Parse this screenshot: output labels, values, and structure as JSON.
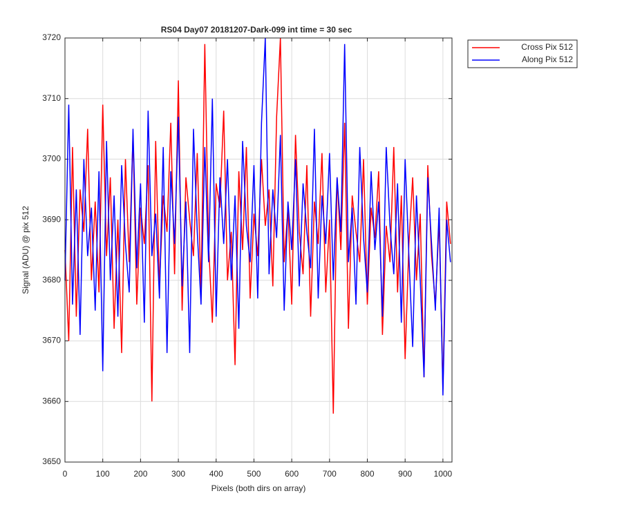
{
  "chart_data": {
    "type": "line",
    "title": "RS04 Day07 20181207-Dark-099 int time = 30 sec",
    "xlabel": "Pixels (both dirs on array)",
    "ylabel": "Signal (ADU) @ pix 512",
    "x": [
      0,
      10,
      20,
      30,
      40,
      50,
      60,
      70,
      80,
      90,
      100,
      110,
      120,
      130,
      140,
      150,
      160,
      170,
      180,
      190,
      200,
      210,
      220,
      230,
      240,
      250,
      260,
      270,
      280,
      290,
      300,
      310,
      320,
      330,
      340,
      350,
      360,
      370,
      380,
      390,
      400,
      410,
      420,
      430,
      440,
      450,
      460,
      470,
      480,
      490,
      500,
      510,
      520,
      530,
      540,
      550,
      560,
      570,
      580,
      590,
      600,
      610,
      620,
      630,
      640,
      650,
      660,
      670,
      680,
      690,
      700,
      710,
      720,
      730,
      740,
      750,
      760,
      770,
      780,
      790,
      800,
      810,
      820,
      830,
      840,
      850,
      860,
      870,
      880,
      890,
      900,
      910,
      920,
      930,
      940,
      950,
      960,
      970,
      980,
      990,
      1000,
      1010,
      1020
    ],
    "series": [
      {
        "name": "Cross Pix 512",
        "color": "#ff0000",
        "values": [
          3685,
          3670,
          3702,
          3674,
          3695,
          3688,
          3705,
          3680,
          3693,
          3678,
          3709,
          3684,
          3697,
          3672,
          3690,
          3668,
          3700,
          3683,
          3704,
          3676,
          3692,
          3686,
          3699,
          3660,
          3703,
          3679,
          3694,
          3688,
          3706,
          3681,
          3713,
          3675,
          3697,
          3690,
          3684,
          3701,
          3678,
          3719,
          3686,
          3673,
          3696,
          3692,
          3708,
          3680,
          3688,
          3666,
          3698,
          3685,
          3702,
          3677,
          3691,
          3684,
          3700,
          3689,
          3695,
          3679,
          3707,
          3720,
          3683,
          3692,
          3676,
          3704,
          3688,
          3681,
          3699,
          3674,
          3693,
          3686,
          3701,
          3678,
          3690,
          3658,
          3697,
          3685,
          3706,
          3672,
          3694,
          3688,
          3683,
          3700,
          3676,
          3692,
          3687,
          3698,
          3671,
          3689,
          3683,
          3702,
          3678,
          3694,
          3667,
          3686,
          3697,
          3680,
          3691,
          3664,
          3699,
          3684,
          3676,
          3690,
          3662,
          3693,
          3686
        ]
      },
      {
        "name": "Along Pix 512",
        "color": "#0000ff",
        "values": [
          3680,
          3709,
          3676,
          3695,
          3671,
          3700,
          3684,
          3692,
          3675,
          3698,
          3665,
          3703,
          3680,
          3694,
          3674,
          3699,
          3686,
          3678,
          3705,
          3682,
          3696,
          3673,
          3708,
          3684,
          3691,
          3677,
          3702,
          3668,
          3698,
          3686,
          3707,
          3679,
          3693,
          3668,
          3705,
          3688,
          3676,
          3702,
          3683,
          3710,
          3674,
          3697,
          3686,
          3700,
          3680,
          3694,
          3672,
          3703,
          3689,
          3683,
          3699,
          3677,
          3706,
          3720,
          3681,
          3695,
          3687,
          3704,
          3675,
          3693,
          3685,
          3700,
          3679,
          3696,
          3688,
          3682,
          3705,
          3677,
          3694,
          3686,
          3701,
          3680,
          3697,
          3688,
          3719,
          3683,
          3692,
          3676,
          3702,
          3687,
          3678,
          3698,
          3685,
          3693,
          3674,
          3702,
          3689,
          3681,
          3696,
          3673,
          3700,
          3684,
          3669,
          3694,
          3680,
          3664,
          3697,
          3686,
          3675,
          3692,
          3661,
          3690,
          3683
        ]
      }
    ],
    "xlim": [
      0,
      1024
    ],
    "xticks": [
      0,
      100,
      200,
      300,
      400,
      500,
      600,
      700,
      800,
      900,
      1000
    ],
    "ylim": [
      3650,
      3720
    ],
    "yticks": [
      3650,
      3660,
      3670,
      3680,
      3690,
      3700,
      3710,
      3720
    ],
    "grid": true,
    "legend": "northeastoutside"
  }
}
